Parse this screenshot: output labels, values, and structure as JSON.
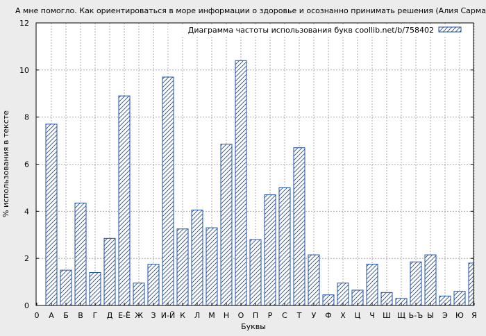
{
  "chart_data": {
    "type": "bar",
    "title": "А мне помогло. Как ориентироваться в море информации о здоровье и осознанно принимать решения (Алия Сарманова)",
    "xlabel": "Буквы",
    "ylabel": "% использования в тексте",
    "ylim": [
      0,
      12
    ],
    "yticks": [
      "0",
      "2",
      "4",
      "6",
      "8",
      "10",
      "12"
    ],
    "grid": true,
    "legend_position": "top-right",
    "bar_color": "#1f4fa8",
    "background_color": "#ececec",
    "plot_background": "#ffffff",
    "series": [
      {
        "name": "Диаграмма частоты использования букв coollib.net/b/758402"
      }
    ],
    "categories": [
      "0",
      "А",
      "Б",
      "В",
      "Г",
      "Д",
      "Е-Ё",
      "Ж",
      "З",
      "И-Й",
      "К",
      "Л",
      "М",
      "Н",
      "О",
      "П",
      "Р",
      "С",
      "Т",
      "У",
      "Ф",
      "Х",
      "Ц",
      "Ч",
      "Ш",
      "Щ",
      "Ь-Ъ",
      "Ы",
      "Э",
      "Ю",
      "Я"
    ],
    "values": [
      null,
      7.7,
      1.5,
      4.35,
      1.4,
      2.85,
      8.9,
      0.95,
      1.75,
      9.7,
      3.25,
      4.05,
      3.3,
      6.85,
      10.4,
      2.8,
      4.7,
      5.0,
      6.7,
      2.15,
      0.45,
      0.95,
      0.65,
      1.75,
      0.55,
      0.3,
      1.85,
      2.15,
      0.4,
      0.6,
      1.8
    ]
  }
}
